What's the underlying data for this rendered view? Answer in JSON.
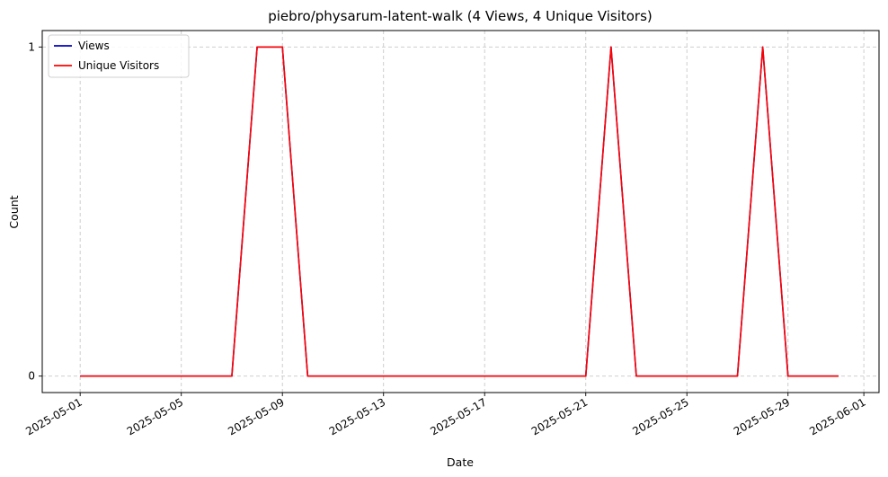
{
  "chart_data": {
    "type": "line",
    "title": "piebro/physarum-latent-walk (4 Views, 4 Unique Visitors)",
    "xlabel": "Date",
    "ylabel": "Count",
    "x": [
      "2025-05-01",
      "2025-05-02",
      "2025-05-03",
      "2025-05-04",
      "2025-05-05",
      "2025-05-06",
      "2025-05-07",
      "2025-05-08",
      "2025-05-09",
      "2025-05-10",
      "2025-05-11",
      "2025-05-12",
      "2025-05-13",
      "2025-05-14",
      "2025-05-15",
      "2025-05-16",
      "2025-05-17",
      "2025-05-18",
      "2025-05-19",
      "2025-05-20",
      "2025-05-21",
      "2025-05-22",
      "2025-05-23",
      "2025-05-24",
      "2025-05-25",
      "2025-05-26",
      "2025-05-27",
      "2025-05-28",
      "2025-05-29",
      "2025-05-30",
      "2025-05-31"
    ],
    "series": [
      {
        "name": "Views",
        "color": "#0000c0",
        "values": [
          0,
          0,
          0,
          0,
          0,
          0,
          0,
          1,
          1,
          0,
          0,
          0,
          0,
          0,
          0,
          0,
          0,
          0,
          0,
          0,
          0,
          1,
          0,
          0,
          0,
          0,
          0,
          1,
          0,
          0,
          0
        ]
      },
      {
        "name": "Unique Visitors",
        "color": "#ff0000",
        "values": [
          0,
          0,
          0,
          0,
          0,
          0,
          0,
          1,
          1,
          0,
          0,
          0,
          0,
          0,
          0,
          0,
          0,
          0,
          0,
          0,
          0,
          1,
          0,
          0,
          0,
          0,
          0,
          1,
          0,
          0,
          0
        ]
      }
    ],
    "xticks": [
      "2025-05-01",
      "2025-05-05",
      "2025-05-09",
      "2025-05-13",
      "2025-05-17",
      "2025-05-21",
      "2025-05-25",
      "2025-05-29",
      "2025-06-01"
    ],
    "yticks": [
      0,
      1
    ],
    "xlim": [
      "2025-04-29.5",
      "2025-06-01.6"
    ],
    "ylim": [
      -0.05,
      1.05
    ],
    "grid": true,
    "legend_position": "top-left"
  }
}
